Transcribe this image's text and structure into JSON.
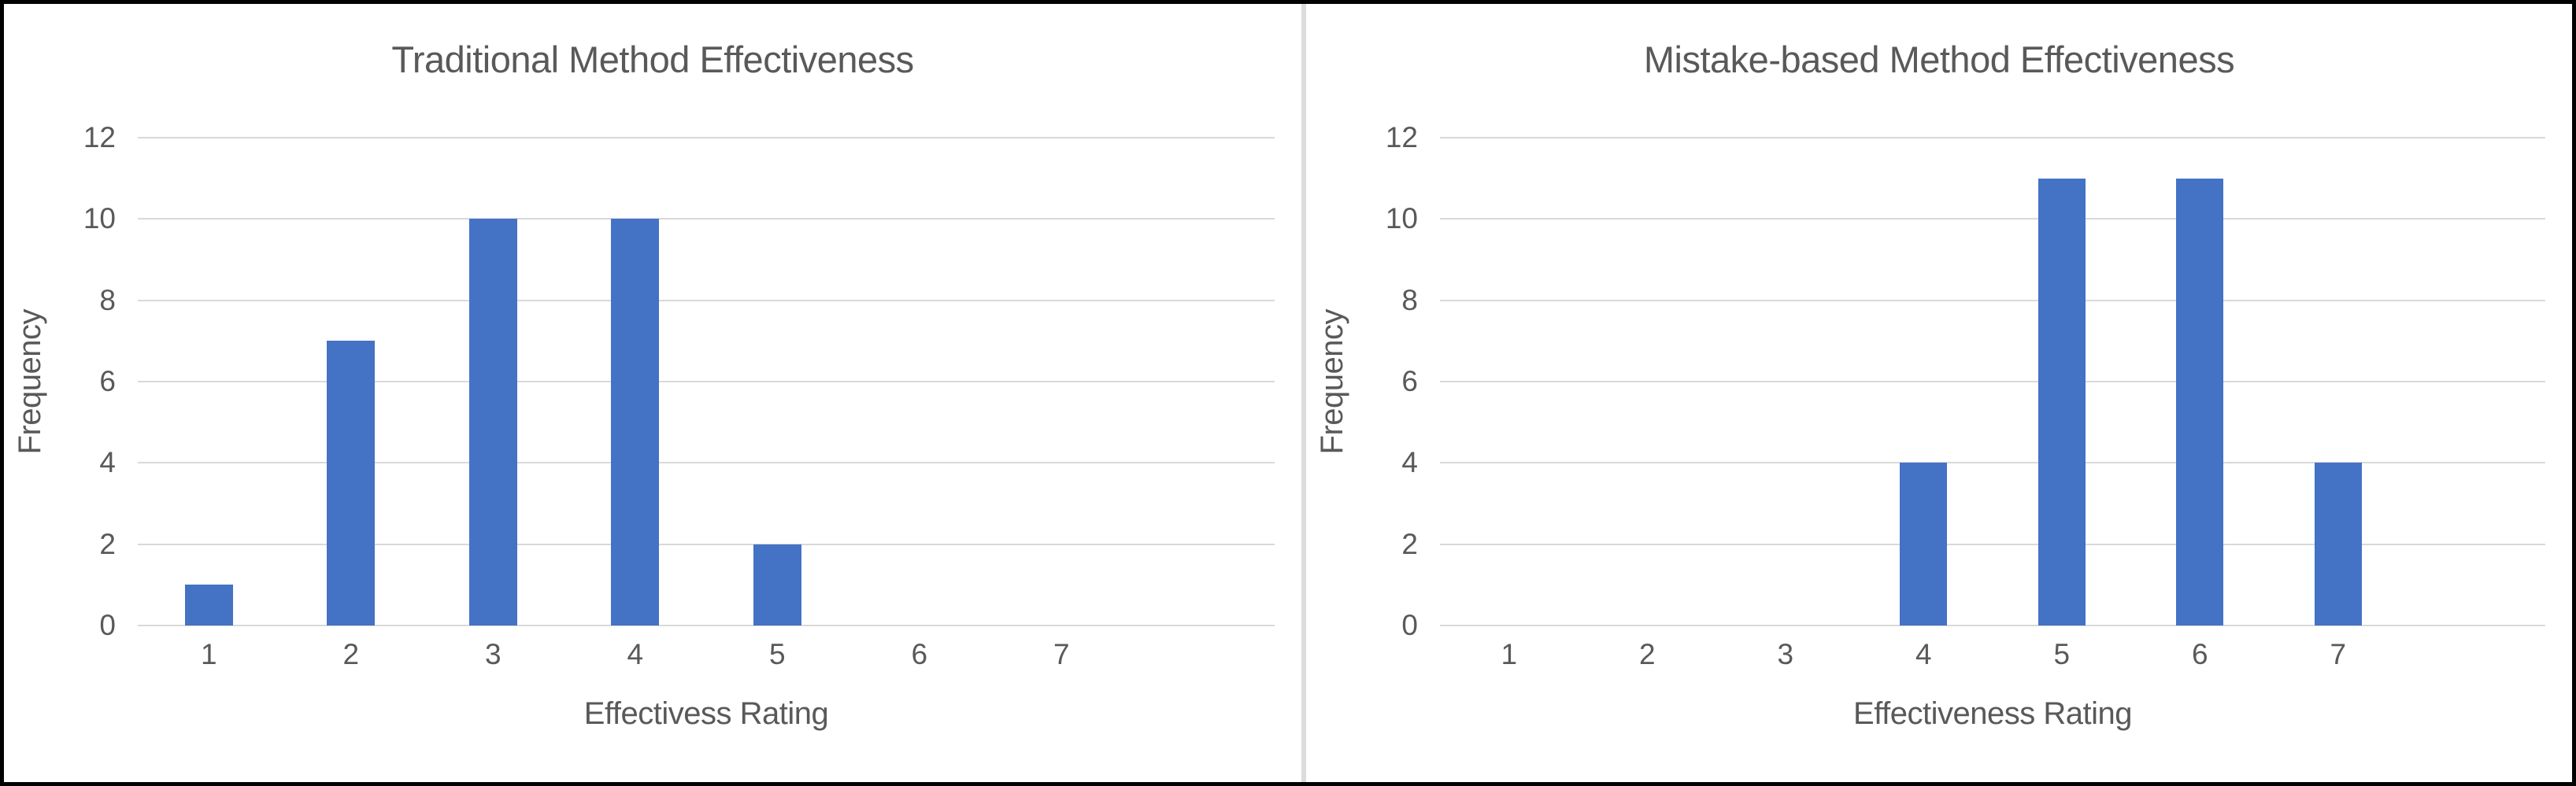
{
  "colors": {
    "bar": "#4472c4",
    "text": "#595959",
    "gridline": "#d9d9d9",
    "divider": "#dcdcdc",
    "border": "#010101",
    "background": "#ffffff"
  },
  "chart_data": [
    {
      "type": "bar",
      "title": "Traditional Method Effectiveness",
      "xlabel": "Effectivess Rating",
      "ylabel": "Frequency",
      "categories": [
        "1",
        "2",
        "3",
        "4",
        "5",
        "6",
        "7"
      ],
      "values": [
        1,
        7,
        10,
        10,
        2,
        0,
        0
      ],
      "ylim": [
        0,
        12
      ],
      "yticks": [
        0,
        2,
        4,
        6,
        8,
        10,
        12
      ],
      "grid": true,
      "legend": false
    },
    {
      "type": "bar",
      "title": "Mistake-based Method Effectiveness",
      "xlabel": "Effectiveness Rating",
      "ylabel": "Frequency",
      "categories": [
        "1",
        "2",
        "3",
        "4",
        "5",
        "6",
        "7"
      ],
      "values": [
        0,
        0,
        0,
        4,
        11,
        11,
        4
      ],
      "ylim": [
        0,
        12
      ],
      "yticks": [
        0,
        2,
        4,
        6,
        8,
        10,
        12
      ],
      "grid": true,
      "legend": false
    }
  ]
}
